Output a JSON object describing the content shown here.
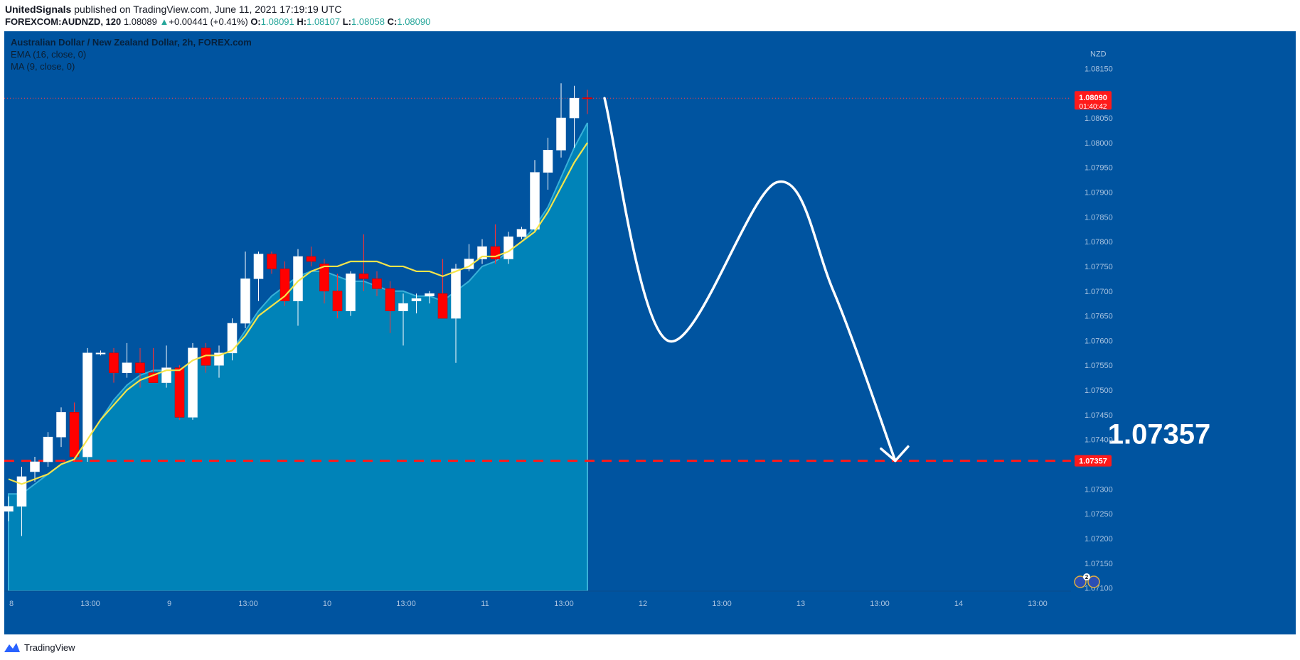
{
  "header": {
    "author": "UnitedSignals",
    "published_text": "published on TradingView.com, June 11, 2021 17:19:19 UTC",
    "symbol": "FOREXCOM:AUDNZD, 120",
    "last_price": "1.08089",
    "change_arrow": "▲",
    "change": "+0.00441 (+0.41%)",
    "o_label": "O:",
    "o_value": "1.08091",
    "h_label": "H:",
    "h_value": "1.08107",
    "l_label": "L:",
    "l_value": "1.08058",
    "c_label": "C:",
    "c_value": "1.08090"
  },
  "legend": {
    "title": "Australian Dollar / New Zealand Dollar, 2h, FOREX.com",
    "ema": "EMA (16, close, 0)",
    "ma": "MA (9, close, 0)"
  },
  "footer": {
    "brand": "TradingView",
    "brand_icon": "tradingview-logo-icon"
  },
  "colors": {
    "background": "#0054a0",
    "area_fill": "#0083b8",
    "bull_candle": "#ffffff",
    "bear_candle": "#ff0000",
    "ema_line": "#f5e44a",
    "target_line": "#ff1a1a",
    "annotation": "#ffffff"
  },
  "chart_data": {
    "type": "candlestick",
    "currency": "NZD",
    "ylim": [
      1.07075,
      1.08175
    ],
    "y_ticks": [
      "1.08150",
      "1.08050",
      "1.08000",
      "1.07950",
      "1.07900",
      "1.07850",
      "1.07800",
      "1.07750",
      "1.07700",
      "1.07650",
      "1.07600",
      "1.07550",
      "1.07500",
      "1.07450",
      "1.07400",
      "1.07300",
      "1.07250",
      "1.07200",
      "1.07150",
      "1.07100"
    ],
    "x_ticks": [
      {
        "label": "8",
        "bar": 0
      },
      {
        "label": "13:00",
        "bar": 6
      },
      {
        "label": "9",
        "bar": 12
      },
      {
        "label": "13:00",
        "bar": 18
      },
      {
        "label": "10",
        "bar": 24
      },
      {
        "label": "13:00",
        "bar": 30
      },
      {
        "label": "11",
        "bar": 36
      },
      {
        "label": "13:00",
        "bar": 42
      },
      {
        "label": "12",
        "bar": 48
      },
      {
        "label": "13:00",
        "bar": 54
      },
      {
        "label": "13",
        "bar": 60
      },
      {
        "label": "13:00",
        "bar": 66
      },
      {
        "label": "14",
        "bar": 72
      },
      {
        "label": "13:00",
        "bar": 78
      }
    ],
    "candles": [
      {
        "o": 1.07255,
        "h": 1.07285,
        "l": 1.07235,
        "c": 1.07265
      },
      {
        "o": 1.07265,
        "h": 1.07345,
        "l": 1.07205,
        "c": 1.07325
      },
      {
        "o": 1.07335,
        "h": 1.07365,
        "l": 1.07315,
        "c": 1.07355
      },
      {
        "o": 1.07355,
        "h": 1.07415,
        "l": 1.07345,
        "c": 1.07405
      },
      {
        "o": 1.07405,
        "h": 1.07465,
        "l": 1.07385,
        "c": 1.07455
      },
      {
        "o": 1.07455,
        "h": 1.07475,
        "l": 1.07355,
        "c": 1.07365
      },
      {
        "o": 1.07365,
        "h": 1.07585,
        "l": 1.07355,
        "c": 1.07575
      },
      {
        "o": 1.07575,
        "h": 1.0758,
        "l": 1.0757,
        "c": 1.07575
      },
      {
        "o": 1.07575,
        "h": 1.07585,
        "l": 1.07515,
        "c": 1.07535
      },
      {
        "o": 1.07535,
        "h": 1.07595,
        "l": 1.07525,
        "c": 1.07555
      },
      {
        "o": 1.07555,
        "h": 1.07585,
        "l": 1.07505,
        "c": 1.07535
      },
      {
        "o": 1.07535,
        "h": 1.07585,
        "l": 1.07515,
        "c": 1.07515
      },
      {
        "o": 1.07515,
        "h": 1.0759,
        "l": 1.07505,
        "c": 1.07545
      },
      {
        "o": 1.07545,
        "h": 1.0755,
        "l": 1.0744,
        "c": 1.07445
      },
      {
        "o": 1.07445,
        "h": 1.07595,
        "l": 1.0744,
        "c": 1.07585
      },
      {
        "o": 1.07585,
        "h": 1.07595,
        "l": 1.07535,
        "c": 1.0755
      },
      {
        "o": 1.0755,
        "h": 1.0759,
        "l": 1.07525,
        "c": 1.07575
      },
      {
        "o": 1.07575,
        "h": 1.07645,
        "l": 1.0756,
        "c": 1.07635
      },
      {
        "o": 1.07635,
        "h": 1.0778,
        "l": 1.07625,
        "c": 1.07725
      },
      {
        "o": 1.07725,
        "h": 1.0778,
        "l": 1.0768,
        "c": 1.07775
      },
      {
        "o": 1.07775,
        "h": 1.0778,
        "l": 1.07735,
        "c": 1.07745
      },
      {
        "o": 1.07745,
        "h": 1.0776,
        "l": 1.0767,
        "c": 1.0768
      },
      {
        "o": 1.0768,
        "h": 1.07785,
        "l": 1.0763,
        "c": 1.0777
      },
      {
        "o": 1.0777,
        "h": 1.0779,
        "l": 1.0775,
        "c": 1.0776
      },
      {
        "o": 1.07755,
        "h": 1.07765,
        "l": 1.07675,
        "c": 1.077
      },
      {
        "o": 1.077,
        "h": 1.07735,
        "l": 1.07645,
        "c": 1.0766
      },
      {
        "o": 1.0766,
        "h": 1.0774,
        "l": 1.0765,
        "c": 1.07735
      },
      {
        "o": 1.07735,
        "h": 1.07815,
        "l": 1.077,
        "c": 1.07725
      },
      {
        "o": 1.07725,
        "h": 1.0774,
        "l": 1.0769,
        "c": 1.07705
      },
      {
        "o": 1.07705,
        "h": 1.0772,
        "l": 1.07615,
        "c": 1.0766
      },
      {
        "o": 1.0766,
        "h": 1.07695,
        "l": 1.0759,
        "c": 1.07675
      },
      {
        "o": 1.0768,
        "h": 1.07695,
        "l": 1.07655,
        "c": 1.07685
      },
      {
        "o": 1.0769,
        "h": 1.077,
        "l": 1.07675,
        "c": 1.07695
      },
      {
        "o": 1.07695,
        "h": 1.07765,
        "l": 1.07655,
        "c": 1.07645
      },
      {
        "o": 1.07645,
        "h": 1.07755,
        "l": 1.07555,
        "c": 1.07745
      },
      {
        "o": 1.07745,
        "h": 1.07795,
        "l": 1.0774,
        "c": 1.07765
      },
      {
        "o": 1.07765,
        "h": 1.07805,
        "l": 1.07755,
        "c": 1.0779
      },
      {
        "o": 1.0779,
        "h": 1.07835,
        "l": 1.07755,
        "c": 1.07765
      },
      {
        "o": 1.07765,
        "h": 1.0782,
        "l": 1.07755,
        "c": 1.0781
      },
      {
        "o": 1.0781,
        "h": 1.0783,
        "l": 1.07805,
        "c": 1.07825
      },
      {
        "o": 1.07825,
        "h": 1.07965,
        "l": 1.0782,
        "c": 1.0794
      },
      {
        "o": 1.0794,
        "h": 1.0801,
        "l": 1.07905,
        "c": 1.07985
      },
      {
        "o": 1.07985,
        "h": 1.0812,
        "l": 1.0797,
        "c": 1.0805
      },
      {
        "o": 1.0805,
        "h": 1.08115,
        "l": 1.0799,
        "c": 1.0809
      },
      {
        "o": 1.08091,
        "h": 1.08107,
        "l": 1.08058,
        "c": 1.0809
      }
    ],
    "ema_16": [
      1.0732,
      1.0731,
      1.0732,
      1.0733,
      1.0735,
      1.0736,
      1.074,
      1.0744,
      1.0747,
      1.075,
      1.0752,
      1.0753,
      1.0754,
      1.0754,
      1.0756,
      1.0757,
      1.0757,
      1.0758,
      1.0761,
      1.0765,
      1.0767,
      1.0769,
      1.0772,
      1.0774,
      1.0775,
      1.0775,
      1.0776,
      1.0776,
      1.0776,
      1.0775,
      1.0775,
      1.0774,
      1.0774,
      1.0773,
      1.0774,
      1.0775,
      1.0777,
      1.0777,
      1.0778,
      1.078,
      1.0782,
      1.0786,
      1.0791,
      1.0796,
      1.08
    ],
    "ma_9": [
      1.0729,
      1.0729,
      1.0731,
      1.0733,
      1.0735,
      1.0736,
      1.074,
      1.0744,
      1.0748,
      1.0751,
      1.0753,
      1.0754,
      1.0754,
      1.0754,
      1.0756,
      1.0757,
      1.0757,
      1.0758,
      1.0762,
      1.0766,
      1.0769,
      1.0771,
      1.0773,
      1.0774,
      1.0774,
      1.0773,
      1.0772,
      1.0772,
      1.0771,
      1.077,
      1.077,
      1.0769,
      1.0769,
      1.0768,
      1.077,
      1.0772,
      1.0775,
      1.0776,
      1.0778,
      1.078,
      1.0783,
      1.0787,
      1.0793,
      1.0799,
      1.0804
    ],
    "current_price": {
      "value": 1.0809,
      "label": "1.08090",
      "countdown": "01:40:42"
    },
    "target": {
      "value": 1.07357,
      "label": "1.07357",
      "axis_label": "1.07357"
    },
    "projection_path": [
      {
        "bar": 45.3,
        "y": 1.0809
      },
      {
        "bar": 50.1,
        "y": 1.076
      },
      {
        "bar": 58.4,
        "y": 1.0792
      },
      {
        "bar": 62.7,
        "y": 1.077
      },
      {
        "bar": 67.4,
        "y": 1.07357
      }
    ],
    "event_badge": {
      "count": "2",
      "icon": "flag-event-icon"
    }
  }
}
